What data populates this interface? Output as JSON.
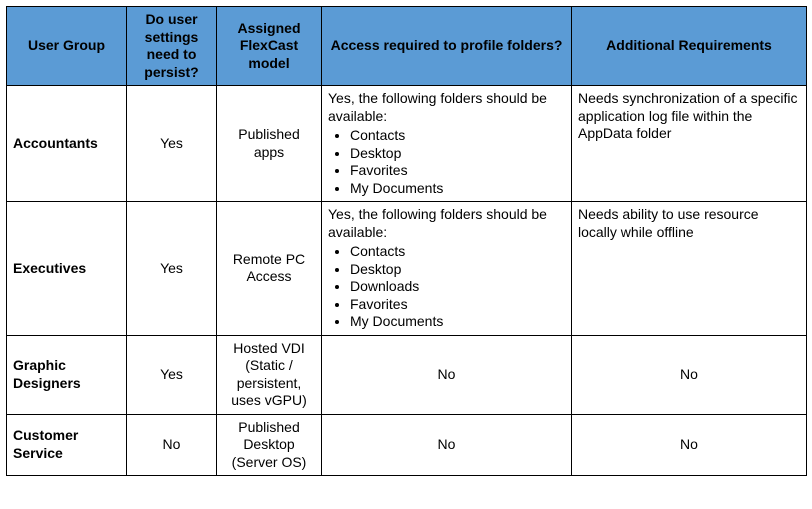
{
  "table": {
    "header_bg": "#5b9bd5",
    "columns": [
      "User Group",
      "Do user settings need to persist?",
      "Assigned FlexCast model",
      "Access required to profile folders?",
      "Additional Requirements"
    ],
    "rows": [
      {
        "group": "Accountants",
        "persist": "Yes",
        "flexcast": "Published apps",
        "access_intro": "Yes, the following folders should be available:",
        "access_folders": [
          "Contacts",
          "Desktop",
          "Favorites",
          "My Documents"
        ],
        "access_simple": "",
        "additional": "Needs synchronization of a specific application log file within the AppData folder"
      },
      {
        "group": "Executives",
        "persist": "Yes",
        "flexcast": "Remote PC Access",
        "access_intro": "Yes, the following folders should be available:",
        "access_folders": [
          "Contacts",
          "Desktop",
          "Downloads",
          "Favorites",
          "My Documents"
        ],
        "access_simple": "",
        "additional": "Needs ability to use resource locally while offline"
      },
      {
        "group": "Graphic Designers",
        "persist": "Yes",
        "flexcast": "Hosted VDI (Static / persistent, uses vGPU)",
        "access_intro": "",
        "access_folders": [],
        "access_simple": "No",
        "additional": "No"
      },
      {
        "group": "Customer Service",
        "persist": "No",
        "flexcast": "Published Desktop (Server OS)",
        "access_intro": "",
        "access_folders": [],
        "access_simple": "No",
        "additional": "No"
      }
    ]
  }
}
